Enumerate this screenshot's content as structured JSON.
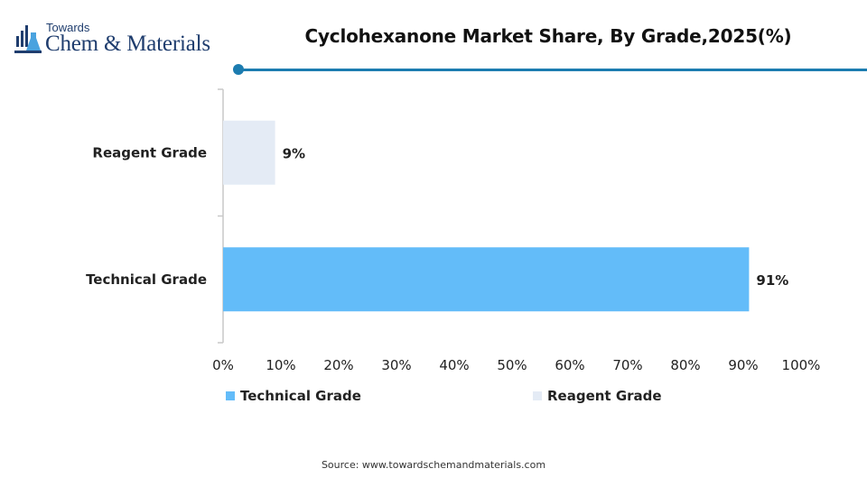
{
  "brand": {
    "line1": "Towards",
    "line2": "Chem & Materials"
  },
  "header": {
    "title": "Cyclohexanone Market Share, By Grade,2025(%)",
    "accent_color": "#1c7cb0"
  },
  "chart_data": {
    "type": "bar",
    "orientation": "horizontal",
    "categories": [
      "Reagent Grade",
      "Technical Grade"
    ],
    "values": [
      9,
      91
    ],
    "data_labels": [
      "9%",
      "91%"
    ],
    "colors": [
      "#e4ebf5",
      "#63bcf9"
    ],
    "xlim": [
      0,
      100
    ],
    "x_ticks": [
      0,
      10,
      20,
      30,
      40,
      50,
      60,
      70,
      80,
      90,
      100
    ],
    "x_tick_labels": [
      "0%",
      "10%",
      "20%",
      "30%",
      "40%",
      "50%",
      "60%",
      "70%",
      "80%",
      "90%",
      "100%"
    ],
    "grid": false,
    "legend": {
      "position": "bottom",
      "items": [
        {
          "label": "Technical Grade",
          "color": "#63bcf9"
        },
        {
          "label": "Reagent Grade",
          "color": "#e4ebf5"
        }
      ]
    }
  },
  "footer": {
    "source": "Source: www.towardschemandmaterials.com"
  }
}
